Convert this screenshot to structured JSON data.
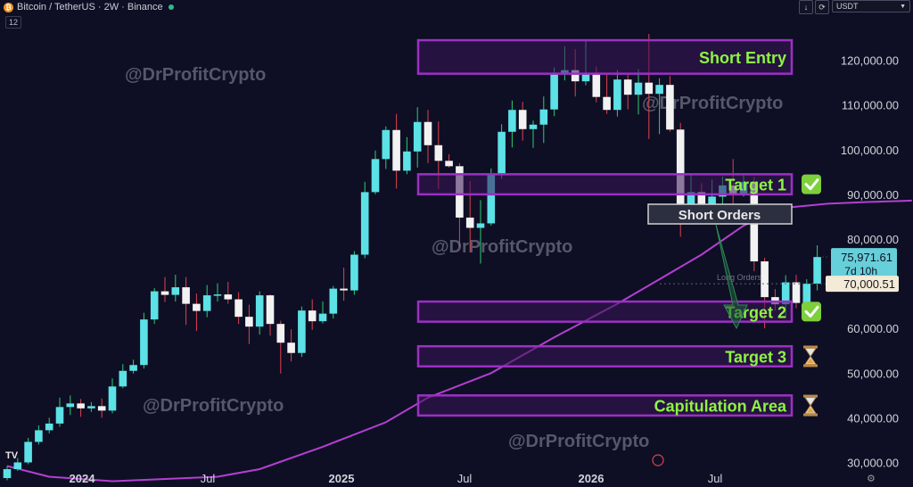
{
  "header": {
    "coin_glyph": "₿",
    "title": "Bitcoin / TetherUS · 2W · Binance",
    "indicator_value": "12",
    "currency": "USDT",
    "down_arrow_glyph": "↓",
    "replay_glyph": "⟳",
    "settings_glyph": "⚙",
    "live_dot_color": "#2ebd85"
  },
  "watermark": "@DrProfitCrypto",
  "zones": [
    {
      "label": "Short Entry",
      "low": 117000,
      "high": 124500,
      "status": ""
    },
    {
      "label": "Target 1",
      "low": 90000,
      "high": 94500,
      "status": "check"
    },
    {
      "label": "Target 2",
      "low": 61500,
      "high": 66000,
      "status": "check"
    },
    {
      "label": "Target 3",
      "low": 51500,
      "high": 56000,
      "status": "hourglass"
    },
    {
      "label": "Capitulation Area",
      "low": 40500,
      "high": 45000,
      "status": "hourglass"
    }
  ],
  "annotations": {
    "short_orders": "Short Orders",
    "long_orders": "Long Orders"
  },
  "price_labels": {
    "current_price": "75,971.61",
    "countdown": "7d 10h",
    "level_price": "70,000.51",
    "current_value": 75971.61,
    "level_value": 70000.51
  },
  "colors": {
    "background": "#0e0f24",
    "candle_up": "#5ce1e6",
    "candle_down": "#f2f2f2",
    "wick_up": "#2ecc71",
    "wick_down": "#e0424f",
    "ma_line": "#b43fd1",
    "zone_border": "#9b30c4",
    "zone_fill": "#3a1558",
    "zone_text": "#8cf542",
    "check_bg": "#7dcf3c",
    "hourglass": "#e3a53a"
  },
  "chart_data": {
    "type": "candlestick",
    "x_tick_labels": [
      "2024",
      "Jul",
      "2025",
      "Jul",
      "2026",
      "Jul"
    ],
    "y_ticks": [
      30000,
      40000,
      50000,
      60000,
      70000,
      80000,
      90000,
      100000,
      110000,
      120000
    ],
    "y_tick_labels": [
      "30,000.00",
      "40,000.00",
      "50,000.00",
      "60,000.00",
      "70,000.00",
      "80,000.00",
      "90,000.00",
      "100,000.00",
      "110,000.00",
      "120,000.00"
    ],
    "ylim": [
      24500,
      133500
    ],
    "candles": [
      [
        26500,
        28500,
        26000,
        29200
      ],
      [
        28500,
        30000,
        28100,
        31000
      ],
      [
        30000,
        34600,
        29600,
        35500
      ],
      [
        34600,
        37200,
        34000,
        38300
      ],
      [
        37200,
        38700,
        36500,
        40000
      ],
      [
        38700,
        42400,
        38000,
        44500
      ],
      [
        42400,
        43200,
        40600,
        45000
      ],
      [
        43200,
        42100,
        40200,
        44200
      ],
      [
        42100,
        42600,
        41300,
        43500
      ],
      [
        42600,
        41600,
        40000,
        44300
      ],
      [
        41600,
        47000,
        41000,
        48800
      ],
      [
        47000,
        50500,
        46600,
        52000
      ],
      [
        50500,
        51800,
        49900,
        53000
      ],
      [
        51800,
        62000,
        51000,
        63500
      ],
      [
        62000,
        68300,
        61000,
        69000
      ],
      [
        68300,
        67500,
        65900,
        71500
      ],
      [
        67500,
        69200,
        66000,
        72000
      ],
      [
        69200,
        65500,
        60800,
        71500
      ],
      [
        65500,
        63900,
        59400,
        67800
      ],
      [
        63900,
        67400,
        62500,
        69700
      ],
      [
        67400,
        67600,
        66000,
        70100
      ],
      [
        67600,
        66500,
        65500,
        70400
      ],
      [
        66500,
        62600,
        61000,
        68100
      ],
      [
        62600,
        60400,
        56500,
        65300
      ],
      [
        60400,
        67400,
        58600,
        68300
      ],
      [
        67400,
        61000,
        58400,
        67600
      ],
      [
        61000,
        56800,
        49900,
        61700
      ],
      [
        56800,
        54500,
        52600,
        59800
      ],
      [
        54500,
        64000,
        53600,
        64900
      ],
      [
        64000,
        61600,
        59700,
        66500
      ],
      [
        61600,
        63300,
        61100,
        66000
      ],
      [
        63300,
        68900,
        62200,
        69500
      ],
      [
        68900,
        68500,
        66200,
        73600
      ],
      [
        68500,
        76500,
        67500,
        77300
      ],
      [
        76500,
        90500,
        75700,
        92800
      ],
      [
        90500,
        97900,
        90000,
        99800
      ],
      [
        97900,
        104400,
        95700,
        105200
      ],
      [
        104400,
        95300,
        91300,
        108000
      ],
      [
        95300,
        99600,
        94500,
        102800
      ],
      [
        99600,
        106200,
        96000,
        109500
      ],
      [
        106200,
        101000,
        97000,
        108900
      ],
      [
        101000,
        97500,
        91200,
        106300
      ],
      [
        97500,
        96300,
        96000,
        99000
      ],
      [
        96300,
        84800,
        78200,
        97000
      ],
      [
        84800,
        82500,
        77000,
        93000
      ],
      [
        82500,
        83500,
        74500,
        88700
      ],
      [
        83500,
        94500,
        83000,
        95800
      ],
      [
        94500,
        104000,
        93500,
        105700
      ],
      [
        104000,
        108900,
        100500,
        111000
      ],
      [
        108900,
        104600,
        102000,
        110700
      ],
      [
        104600,
        105600,
        100400,
        106500
      ],
      [
        105600,
        109000,
        101500,
        111900
      ],
      [
        109000,
        117000,
        107500,
        118400
      ],
      [
        117000,
        117800,
        115500,
        123100
      ],
      [
        117800,
        115300,
        111900,
        122500
      ],
      [
        115300,
        117200,
        114400,
        124400
      ],
      [
        117200,
        111800,
        110600,
        118600
      ],
      [
        111800,
        108900,
        108000,
        117000
      ],
      [
        108900,
        115700,
        107400,
        117800
      ],
      [
        115700,
        112300,
        109000,
        117000
      ],
      [
        112300,
        115000,
        107900,
        118000
      ],
      [
        115000,
        112500,
        102400,
        125900
      ],
      [
        112500,
        114500,
        103500,
        116000
      ],
      [
        114500,
        104500,
        104000,
        116500
      ],
      [
        104500,
        86800,
        80500,
        106000
      ],
      [
        86800,
        90500,
        84000,
        94600
      ],
      [
        90500,
        87000,
        84500,
        92500
      ],
      [
        87000,
        89500,
        85000,
        93300
      ],
      [
        89500,
        92000,
        85400,
        94000
      ],
      [
        92000,
        90000,
        88000,
        97900
      ],
      [
        90000,
        92800,
        89500,
        94300
      ],
      [
        92800,
        75000,
        72800,
        93900
      ],
      [
        75000,
        67000,
        60000,
        75800
      ],
      [
        67000,
        65400,
        64000,
        68800
      ],
      [
        65400,
        70300,
        62500,
        71900
      ],
      [
        70300,
        65700,
        64500,
        72000
      ],
      [
        65700,
        70000,
        64000,
        71000
      ],
      [
        70000,
        75970,
        68500,
        78600
      ]
    ],
    "moving_average": [
      [
        0,
        29200
      ],
      [
        4,
        26800
      ],
      [
        10,
        25800
      ],
      [
        20,
        26800
      ],
      [
        24,
        28500
      ],
      [
        30,
        33500
      ],
      [
        36,
        39000
      ],
      [
        40,
        44500
      ],
      [
        46,
        50000
      ],
      [
        52,
        58000
      ],
      [
        58,
        65500
      ],
      [
        62,
        71000
      ],
      [
        66,
        76500
      ],
      [
        70,
        83000
      ],
      [
        74,
        87000
      ],
      [
        78,
        87900
      ],
      [
        82,
        88300
      ],
      [
        86,
        88600
      ]
    ]
  }
}
